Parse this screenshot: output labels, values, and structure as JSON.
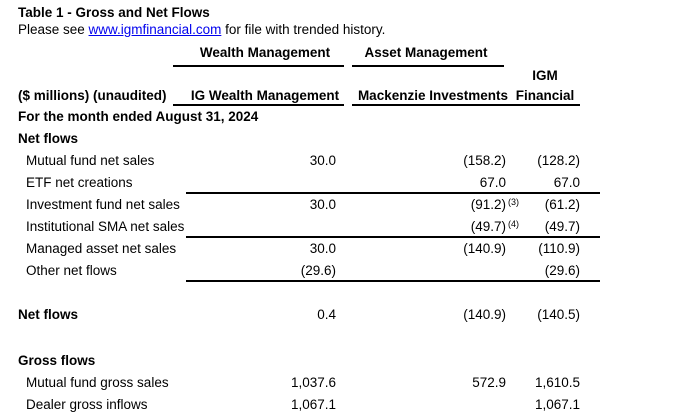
{
  "title": "Table 1 - Gross and Net Flows",
  "subtitle": {
    "prefix": "Please see ",
    "link": "www.igmfinancial.com",
    "suffix": " for file with trended history."
  },
  "header": {
    "group_wealth": "Wealth Management",
    "group_asset": "Asset Management",
    "corner": "($ millions) (unaudited)",
    "col_ig_wealth": "IG Wealth Management",
    "col_mackenzie": "Mackenzie Investments",
    "col_igm_line1": "IGM",
    "col_igm_line2": "Financial"
  },
  "period": "For the month ended August 31, 2024",
  "rows": {
    "net_flows_header": "Net flows",
    "mutual": {
      "label": "Mutual fund net sales",
      "c2": "30.0",
      "c3": "(158.2)",
      "c4": "(128.2)"
    },
    "etf": {
      "label": "ETF net creations",
      "c2": "",
      "c3": "67.0",
      "c4": "67.0"
    },
    "invest": {
      "label": "Investment fund net sales",
      "c2": "30.0",
      "c3": "(91.2)",
      "c3sup": "(3)",
      "c4": "(61.2)"
    },
    "sma": {
      "label": "Institutional SMA net sales",
      "c2": "",
      "c3": "(49.7)",
      "c3sup": "(4)",
      "c4": "(49.7)"
    },
    "managed": {
      "label": "Managed asset net sales",
      "c2": "30.0",
      "c3": "(140.9)",
      "c4": "(110.9)"
    },
    "other": {
      "label": "Other net flows",
      "c2": "(29.6)",
      "c3": "",
      "c4": "(29.6)"
    },
    "total": {
      "label": "Net flows",
      "c2": "0.4",
      "c3": "(140.9)",
      "c4": "(140.5)"
    },
    "gross_flows_header": "Gross flows",
    "mutual_gross": {
      "label": "Mutual fund gross sales",
      "c2": "1,037.6",
      "c3": "572.9",
      "c4": "1,610.5"
    },
    "dealer": {
      "label": "Dealer gross inflows",
      "c2": "1,067.1",
      "c3": "",
      "c4": "1,067.1"
    }
  },
  "colors": {
    "text": "#000000",
    "link": "#0000ee",
    "rule": "#000000",
    "background": "#ffffff"
  }
}
